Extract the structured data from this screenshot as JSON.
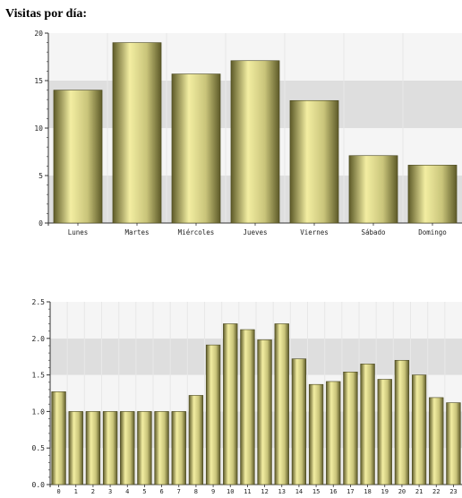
{
  "page": {
    "heading": "Visitas por día:"
  },
  "chart_data": [
    {
      "type": "bar",
      "title": "",
      "categories": [
        "Lunes",
        "Martes",
        "Miércoles",
        "Jueves",
        "Viernes",
        "Sábado",
        "Domingo"
      ],
      "values": [
        14,
        19,
        15.7,
        17.1,
        12.9,
        7.1,
        6.1
      ],
      "yticks": [
        "0",
        "5",
        "10",
        "15",
        "20"
      ],
      "ylim": [
        0,
        20
      ],
      "grid": true
    },
    {
      "type": "bar",
      "title": "",
      "categories": [
        "0",
        "1",
        "2",
        "3",
        "4",
        "5",
        "6",
        "7",
        "8",
        "9",
        "10",
        "11",
        "12",
        "13",
        "14",
        "15",
        "16",
        "17",
        "18",
        "19",
        "20",
        "21",
        "22",
        "23"
      ],
      "values": [
        1.27,
        1.0,
        1.0,
        1.0,
        1.0,
        1.0,
        1.0,
        1.0,
        1.22,
        1.91,
        2.2,
        2.12,
        1.98,
        2.2,
        1.72,
        1.37,
        1.41,
        1.54,
        1.65,
        1.44,
        1.7,
        1.5,
        1.19,
        1.12
      ],
      "yticks": [
        "0.0",
        "0.5",
        "1.0",
        "1.5",
        "2.0",
        "2.5"
      ],
      "ylim": [
        0,
        2.5
      ],
      "grid": true
    }
  ],
  "style": {
    "band_colors": [
      "#f5f5f5",
      "#dedede"
    ],
    "bar_light": "#f3eea2",
    "bar_mid": "#c9c47a",
    "bar_dark": "#5d5a28"
  }
}
